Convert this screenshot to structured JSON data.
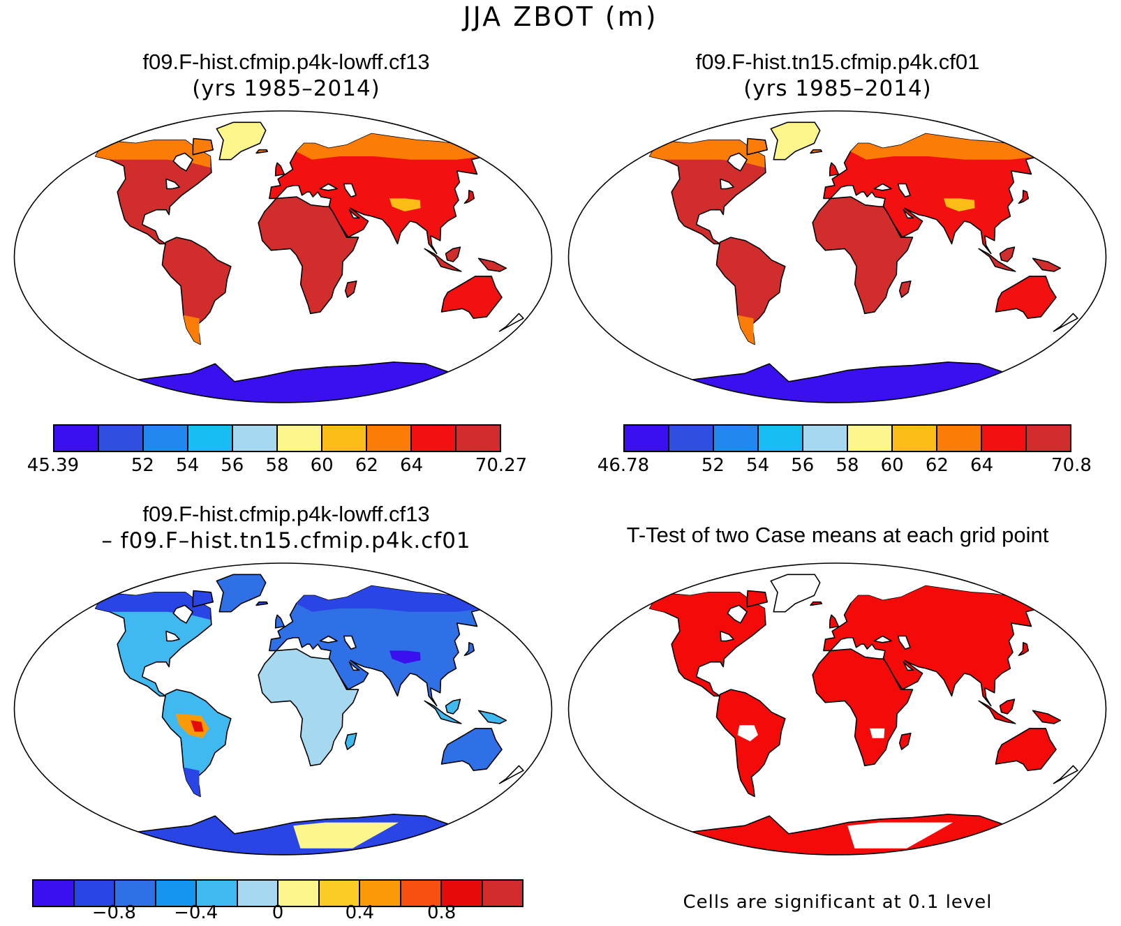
{
  "figure": {
    "title": "JJA ZBOT (m)"
  },
  "panels": [
    {
      "id": "case1",
      "title_line1": "f09.F-hist.cfmip.p4k-lowff.cf13",
      "title_line2": "(yrs 1985–2014)",
      "style": "warm",
      "colorbar": {
        "colors": [
          "#3a10ee",
          "#2f4fe0",
          "#2287ee",
          "#17bdf3",
          "#a6d8f0",
          "#fdf68c",
          "#fbbd16",
          "#fb7d07",
          "#f21010",
          "#d22d2d"
        ],
        "tick_labels": [
          "45.39",
          "52",
          "54",
          "56",
          "58",
          "60",
          "62",
          "64",
          "70.27"
        ],
        "tick_boundaries": [
          0,
          2,
          3,
          4,
          5,
          6,
          7,
          8,
          10
        ]
      }
    },
    {
      "id": "case2",
      "title_line1": "f09.F-hist.tn15.cfmip.p4k.cf01",
      "title_line2": "(yrs 1985–2014)",
      "style": "warm",
      "colorbar": {
        "colors": [
          "#3a10ee",
          "#2f4fe0",
          "#2287ee",
          "#17bdf3",
          "#a6d8f0",
          "#fdf68c",
          "#fbbd16",
          "#fb7d07",
          "#f21010",
          "#d22d2d"
        ],
        "tick_labels": [
          "46.78",
          "52",
          "54",
          "56",
          "58",
          "60",
          "62",
          "64",
          "70.8"
        ],
        "tick_boundaries": [
          0,
          2,
          3,
          4,
          5,
          6,
          7,
          8,
          10
        ]
      }
    },
    {
      "id": "diff",
      "title_line1": "f09.F-hist.cfmip.p4k-lowff.cf13",
      "title_line2": "– f09.F–hist.tn15.cfmip.p4k.cf01",
      "style": "cool",
      "colorbar": {
        "colors": [
          "#3a10ee",
          "#2a45e6",
          "#2f70e6",
          "#1496f0",
          "#3fb9f0",
          "#a6d8f0",
          "#fdf68c",
          "#fbcc26",
          "#fb9a07",
          "#f7500f",
          "#e60a0a",
          "#d22d2d"
        ],
        "tick_labels": [
          "−0.8",
          "−0.4",
          "0",
          "0.4",
          "0.8"
        ],
        "tick_boundaries": [
          2,
          4,
          6,
          8,
          10
        ]
      }
    },
    {
      "id": "ttest",
      "title_line1": "T-Test of two Case means at each grid point",
      "title_line2": "",
      "style": "sig",
      "note": "Cells are significant at 0.1 level"
    }
  ],
  "map_colors": {
    "warm": {
      "land": "#d22d2d",
      "land_alt": "#f21010",
      "high_lat": "#fb7d07",
      "high_lat2": "#fbbd16",
      "greenland": "#fdf68c",
      "antarctica": "#3a10ee",
      "antarctica_alt": "#2f70e6"
    },
    "cool": {
      "land": "#3fb9f0",
      "land_alt": "#2f70e6",
      "high_lat": "#2a45e6",
      "high_lat2": "#3a10ee",
      "greenland": "#2f70e6",
      "antarctica": "#2a45e6",
      "antarctica_alt": "#fdf68c",
      "amazon": "#fb9a07",
      "amazon_core": "#e60a0a",
      "africa": "#a6d8f0"
    },
    "sig": {
      "land": "#f50a0a",
      "land_alt": "#f50a0a",
      "high_lat": "#f50a0a",
      "high_lat2": "#f50a0a",
      "greenland": "#ffffff",
      "antarctica": "#f50a0a",
      "antarctica_alt": "#ffffff"
    }
  }
}
